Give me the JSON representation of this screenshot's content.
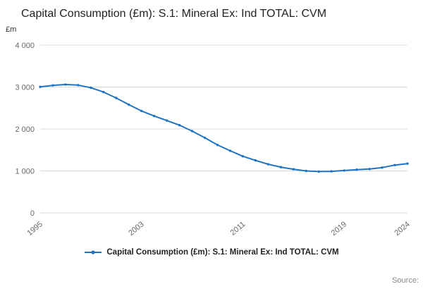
{
  "page": {
    "title": "Capital Consumption (£m): S.1: Mineral Ex: Ind TOTAL: CVM",
    "unit_label": "£m",
    "source_label": "Source:",
    "accent_color": "#2073c2",
    "grid_color": "#d9d9d9",
    "text_color": "#666666"
  },
  "legend": {
    "label": "Capital Consumption (£m): S.1: Mineral Ex: Ind TOTAL: CVM"
  },
  "chart_data": {
    "type": "line",
    "title": "Capital Consumption (£m): S.1: Mineral Ex: Ind TOTAL: CVM",
    "xlabel": "",
    "ylabel": "£m",
    "ylim": [
      0,
      4000
    ],
    "grid": true,
    "legend_position": "bottom",
    "series_name": "Capital Consumption (£m): S.1: Mineral Ex: Ind TOTAL: CVM",
    "x": [
      1995,
      1996,
      1997,
      1998,
      1999,
      2000,
      2001,
      2002,
      2003,
      2004,
      2005,
      2006,
      2007,
      2008,
      2009,
      2010,
      2011,
      2012,
      2013,
      2014,
      2015,
      2016,
      2017,
      2018,
      2019,
      2020,
      2021,
      2022,
      2023,
      2024
    ],
    "values": [
      3005,
      3040,
      3060,
      3045,
      2985,
      2880,
      2740,
      2580,
      2430,
      2310,
      2200,
      2090,
      1950,
      1790,
      1620,
      1480,
      1350,
      1250,
      1160,
      1090,
      1040,
      1000,
      985,
      990,
      1010,
      1030,
      1045,
      1080,
      1140,
      1175
    ],
    "y_ticks": [
      {
        "value": 0,
        "label": "0"
      },
      {
        "value": 1000,
        "label": "1 000"
      },
      {
        "value": 2000,
        "label": "2 000"
      },
      {
        "value": 3000,
        "label": "3 000"
      },
      {
        "value": 4000,
        "label": "4 000"
      }
    ],
    "x_ticks": [
      1995,
      2003,
      2011,
      2019,
      2024
    ]
  }
}
